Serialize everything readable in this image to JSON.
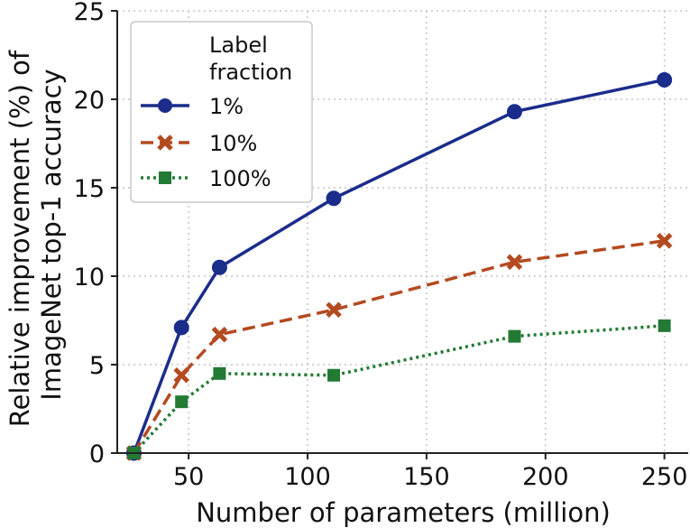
{
  "chart_data": {
    "type": "line",
    "title": "",
    "xlabel": "Number of parameters (million)",
    "ylabel": "Relative improvement (%) of ImageNet top-1 accuracy",
    "ylabel_lines": [
      "Relative improvement (%) of",
      "ImageNet top-1 accuracy"
    ],
    "xlim": [
      20,
      260
    ],
    "ylim": [
      0,
      25
    ],
    "x_ticks": [
      50,
      100,
      150,
      200,
      250
    ],
    "y_ticks": [
      0,
      5,
      10,
      15,
      20,
      25
    ],
    "grid": true,
    "legend_title": "Label fraction",
    "legend_title_lines": [
      "Label",
      "fraction"
    ],
    "legend_position": "top-left",
    "series": [
      {
        "name": "1%",
        "label": "1%",
        "color": "#1b2c8b",
        "line": "solid",
        "marker": "circle",
        "x": [
          27,
          47,
          63,
          111,
          187,
          250
        ],
        "y": [
          0,
          7.1,
          10.5,
          14.4,
          19.3,
          21.1
        ]
      },
      {
        "name": "10%",
        "label": "10%",
        "color": "#b34a20",
        "line": "dashed",
        "marker": "x",
        "x": [
          27,
          47,
          63,
          111,
          187,
          250
        ],
        "y": [
          0,
          4.4,
          6.7,
          8.1,
          10.8,
          12.0
        ]
      },
      {
        "name": "100%",
        "label": "100%",
        "color": "#227a34",
        "line": "dotted",
        "marker": "square",
        "x": [
          27,
          47,
          63,
          111,
          187,
          250
        ],
        "y": [
          0,
          2.9,
          4.5,
          4.4,
          6.6,
          7.2
        ]
      }
    ]
  }
}
